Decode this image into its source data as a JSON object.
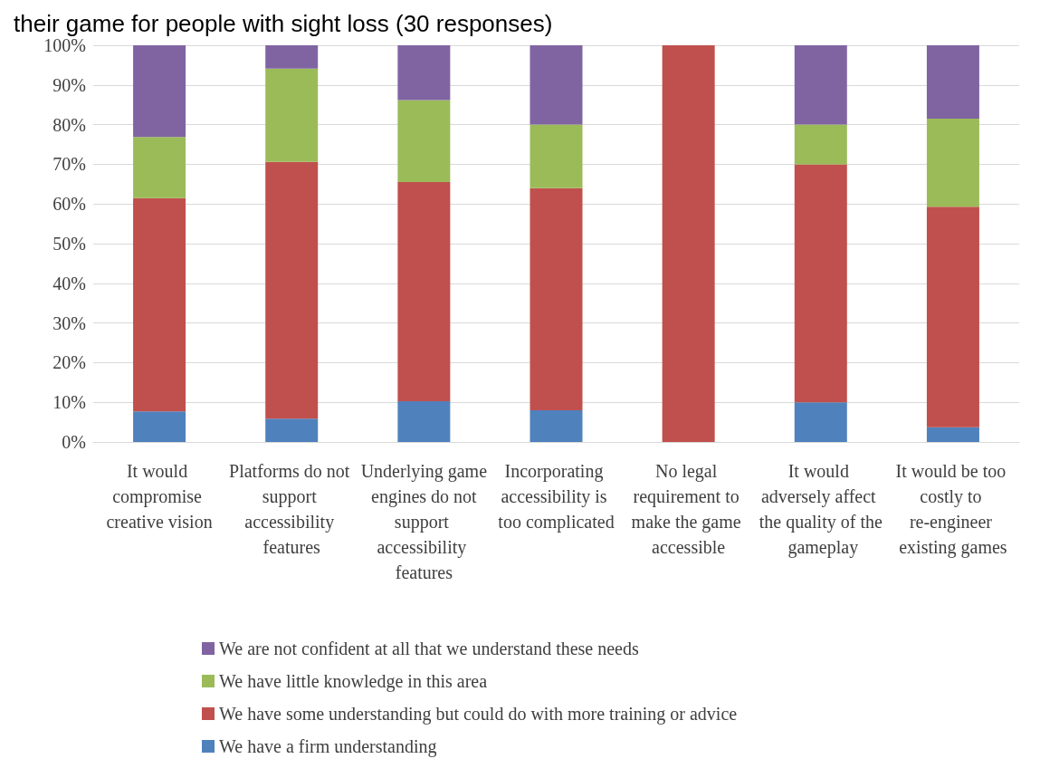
{
  "chart_data": {
    "type": "bar",
    "title": "their game for people with sight loss (30 responses)",
    "stacked": true,
    "categories": [
      "It would compromise creative vision",
      "Platforms do not support accessibility features",
      "Underlying game engines do not support accessibility features",
      "Incorporating accessibility is too complicated",
      "No legal requirement to make the game accessible",
      "It would adversely affect the quality of the gameplay",
      "It would be too costly to re-engineer existing games"
    ],
    "series": [
      {
        "name": "We have a firm understanding",
        "color": "#4f81bd",
        "values": [
          7.7,
          5.9,
          10.3,
          8,
          0,
          10,
          3.7
        ]
      },
      {
        "name": "We have some understanding but could do with more training or advice",
        "color": "#c0504d",
        "values": [
          53.8,
          64.7,
          55.2,
          56,
          100,
          60,
          55.6
        ]
      },
      {
        "name": "We have little knowledge in this area",
        "color": "#9bbb59",
        "values": [
          15.4,
          23.5,
          20.7,
          16,
          0,
          10,
          22.2
        ]
      },
      {
        "name": "We are not confident at all that we understand these needs",
        "color": "#8064a2",
        "values": [
          23.1,
          5.9,
          13.8,
          20,
          0,
          20,
          18.5
        ]
      }
    ],
    "ylim": [
      0,
      100
    ],
    "yticks": [
      {
        "value": 0,
        "label": "0%"
      },
      {
        "value": 10,
        "label": "10%"
      },
      {
        "value": 20,
        "label": "20%"
      },
      {
        "value": 30,
        "label": "30%"
      },
      {
        "value": 40,
        "label": "40%"
      },
      {
        "value": 50,
        "label": "50%"
      },
      {
        "value": 60,
        "label": "60%"
      },
      {
        "value": 70,
        "label": "70%"
      },
      {
        "value": 80,
        "label": "80%"
      },
      {
        "value": 90,
        "label": "90%"
      },
      {
        "value": 100,
        "label": "100%"
      }
    ],
    "grid": "y",
    "legend": "bottom"
  }
}
